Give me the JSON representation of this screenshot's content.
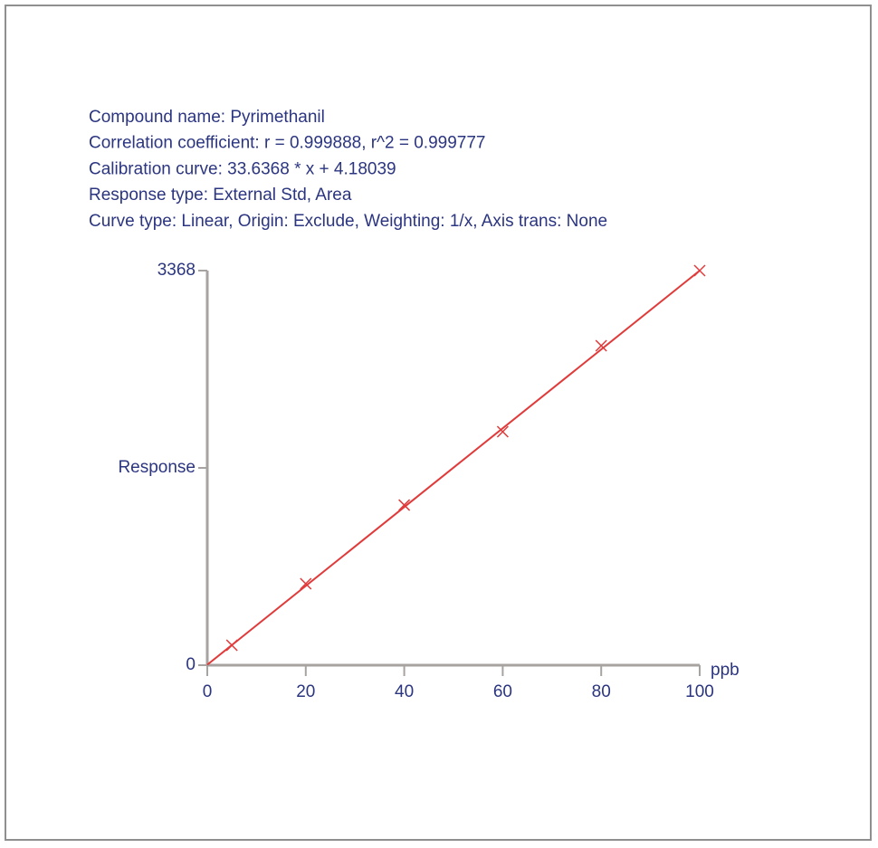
{
  "chart_data": {
    "type": "scatter",
    "header_lines": [
      "Compound name: Pyrimethanil",
      "Correlation coefficient: r = 0.999888, r^2 = 0.999777",
      "Calibration curve: 33.6368 * x + 4.18039",
      "Response type: External Std, Area",
      "Curve type: Linear, Origin: Exclude, Weighting: 1/x, Axis trans: None"
    ],
    "y_label": "Response",
    "x_label": "ppb",
    "xlim": [
      0,
      100
    ],
    "xticks": [
      0,
      20,
      40,
      60,
      80,
      100
    ],
    "ylim": [
      0,
      3368
    ],
    "yticks": [
      0,
      3368
    ],
    "series": [
      {
        "type": "scatter",
        "color": "#e03a3a",
        "x": [
          5,
          20,
          40,
          60,
          80,
          100
        ],
        "values": [
          170,
          695,
          1367,
          1993,
          2727,
          3368
        ]
      },
      {
        "type": "line",
        "color": "#e03a3a",
        "x": [
          0,
          100
        ],
        "values": [
          4,
          3368
        ]
      }
    ]
  }
}
